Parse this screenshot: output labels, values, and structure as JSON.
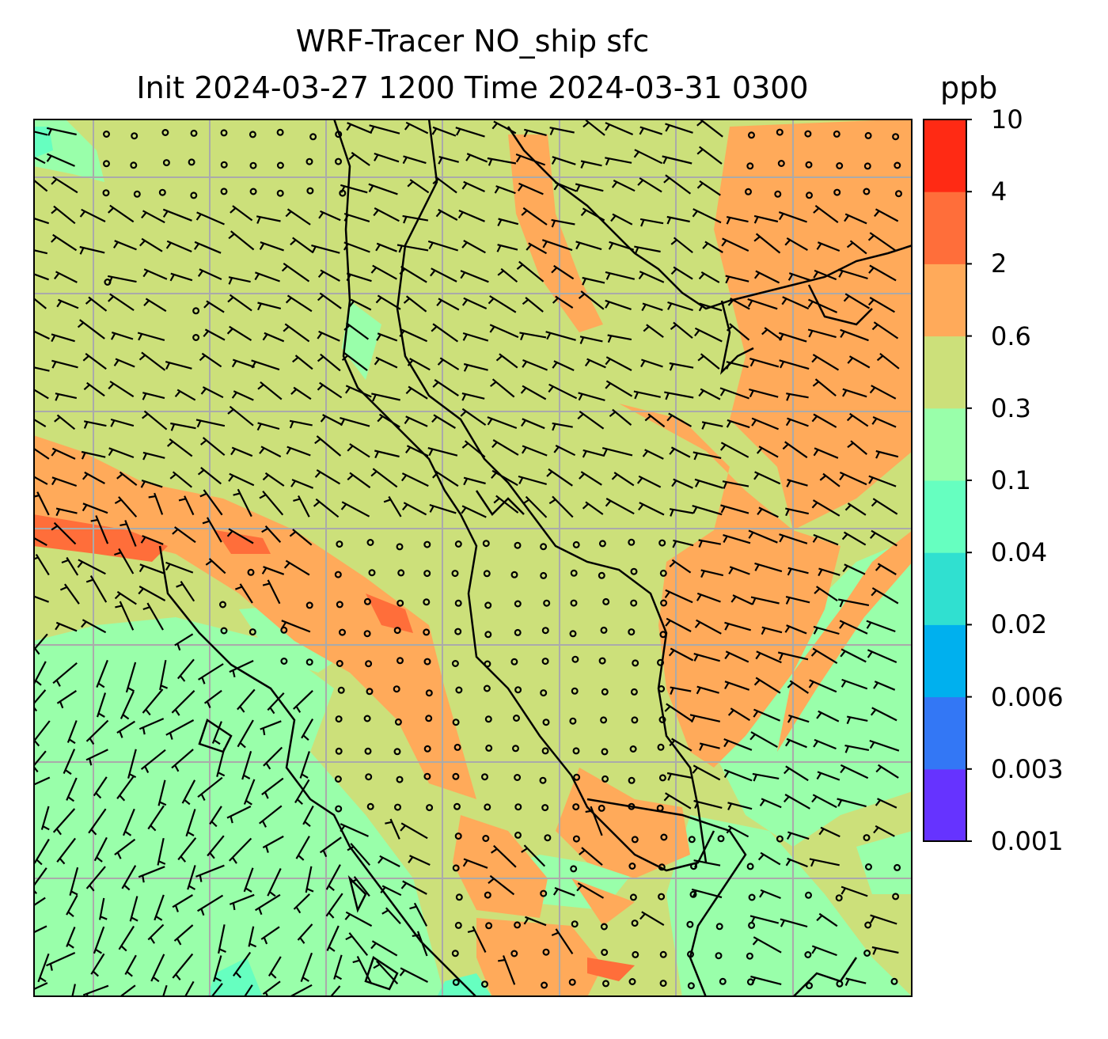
{
  "title": {
    "line1": "WRF-Tracer NO_ship sfc",
    "line2": "Init 2024-03-27 1200 Time 2024-03-31 0300",
    "units": "ppb"
  },
  "colorbar": {
    "ticks": [
      "10",
      "4",
      "2",
      "0.6",
      "0.3",
      "0.1",
      "0.04",
      "0.02",
      "0.006",
      "0.003",
      "0.001"
    ],
    "colors_bottom_to_top": [
      "#6633ff",
      "#3377f5",
      "#00b0ee",
      "#30e0d0",
      "#66ffc0",
      "#99ffaa",
      "#cce07a",
      "#ffaa5a",
      "#ff6e3a",
      "#ff2a14"
    ]
  },
  "map": {
    "background_color": "#cce07a",
    "feature_colors": {
      "orange": "#ffaa5a",
      "red": "#ff6e3a",
      "green": "#99ffaa",
      "teal": "#66ffc0"
    },
    "gridlines": true,
    "symbols": [
      "wind-barbs",
      "calm-circles",
      "coastlines"
    ]
  }
}
